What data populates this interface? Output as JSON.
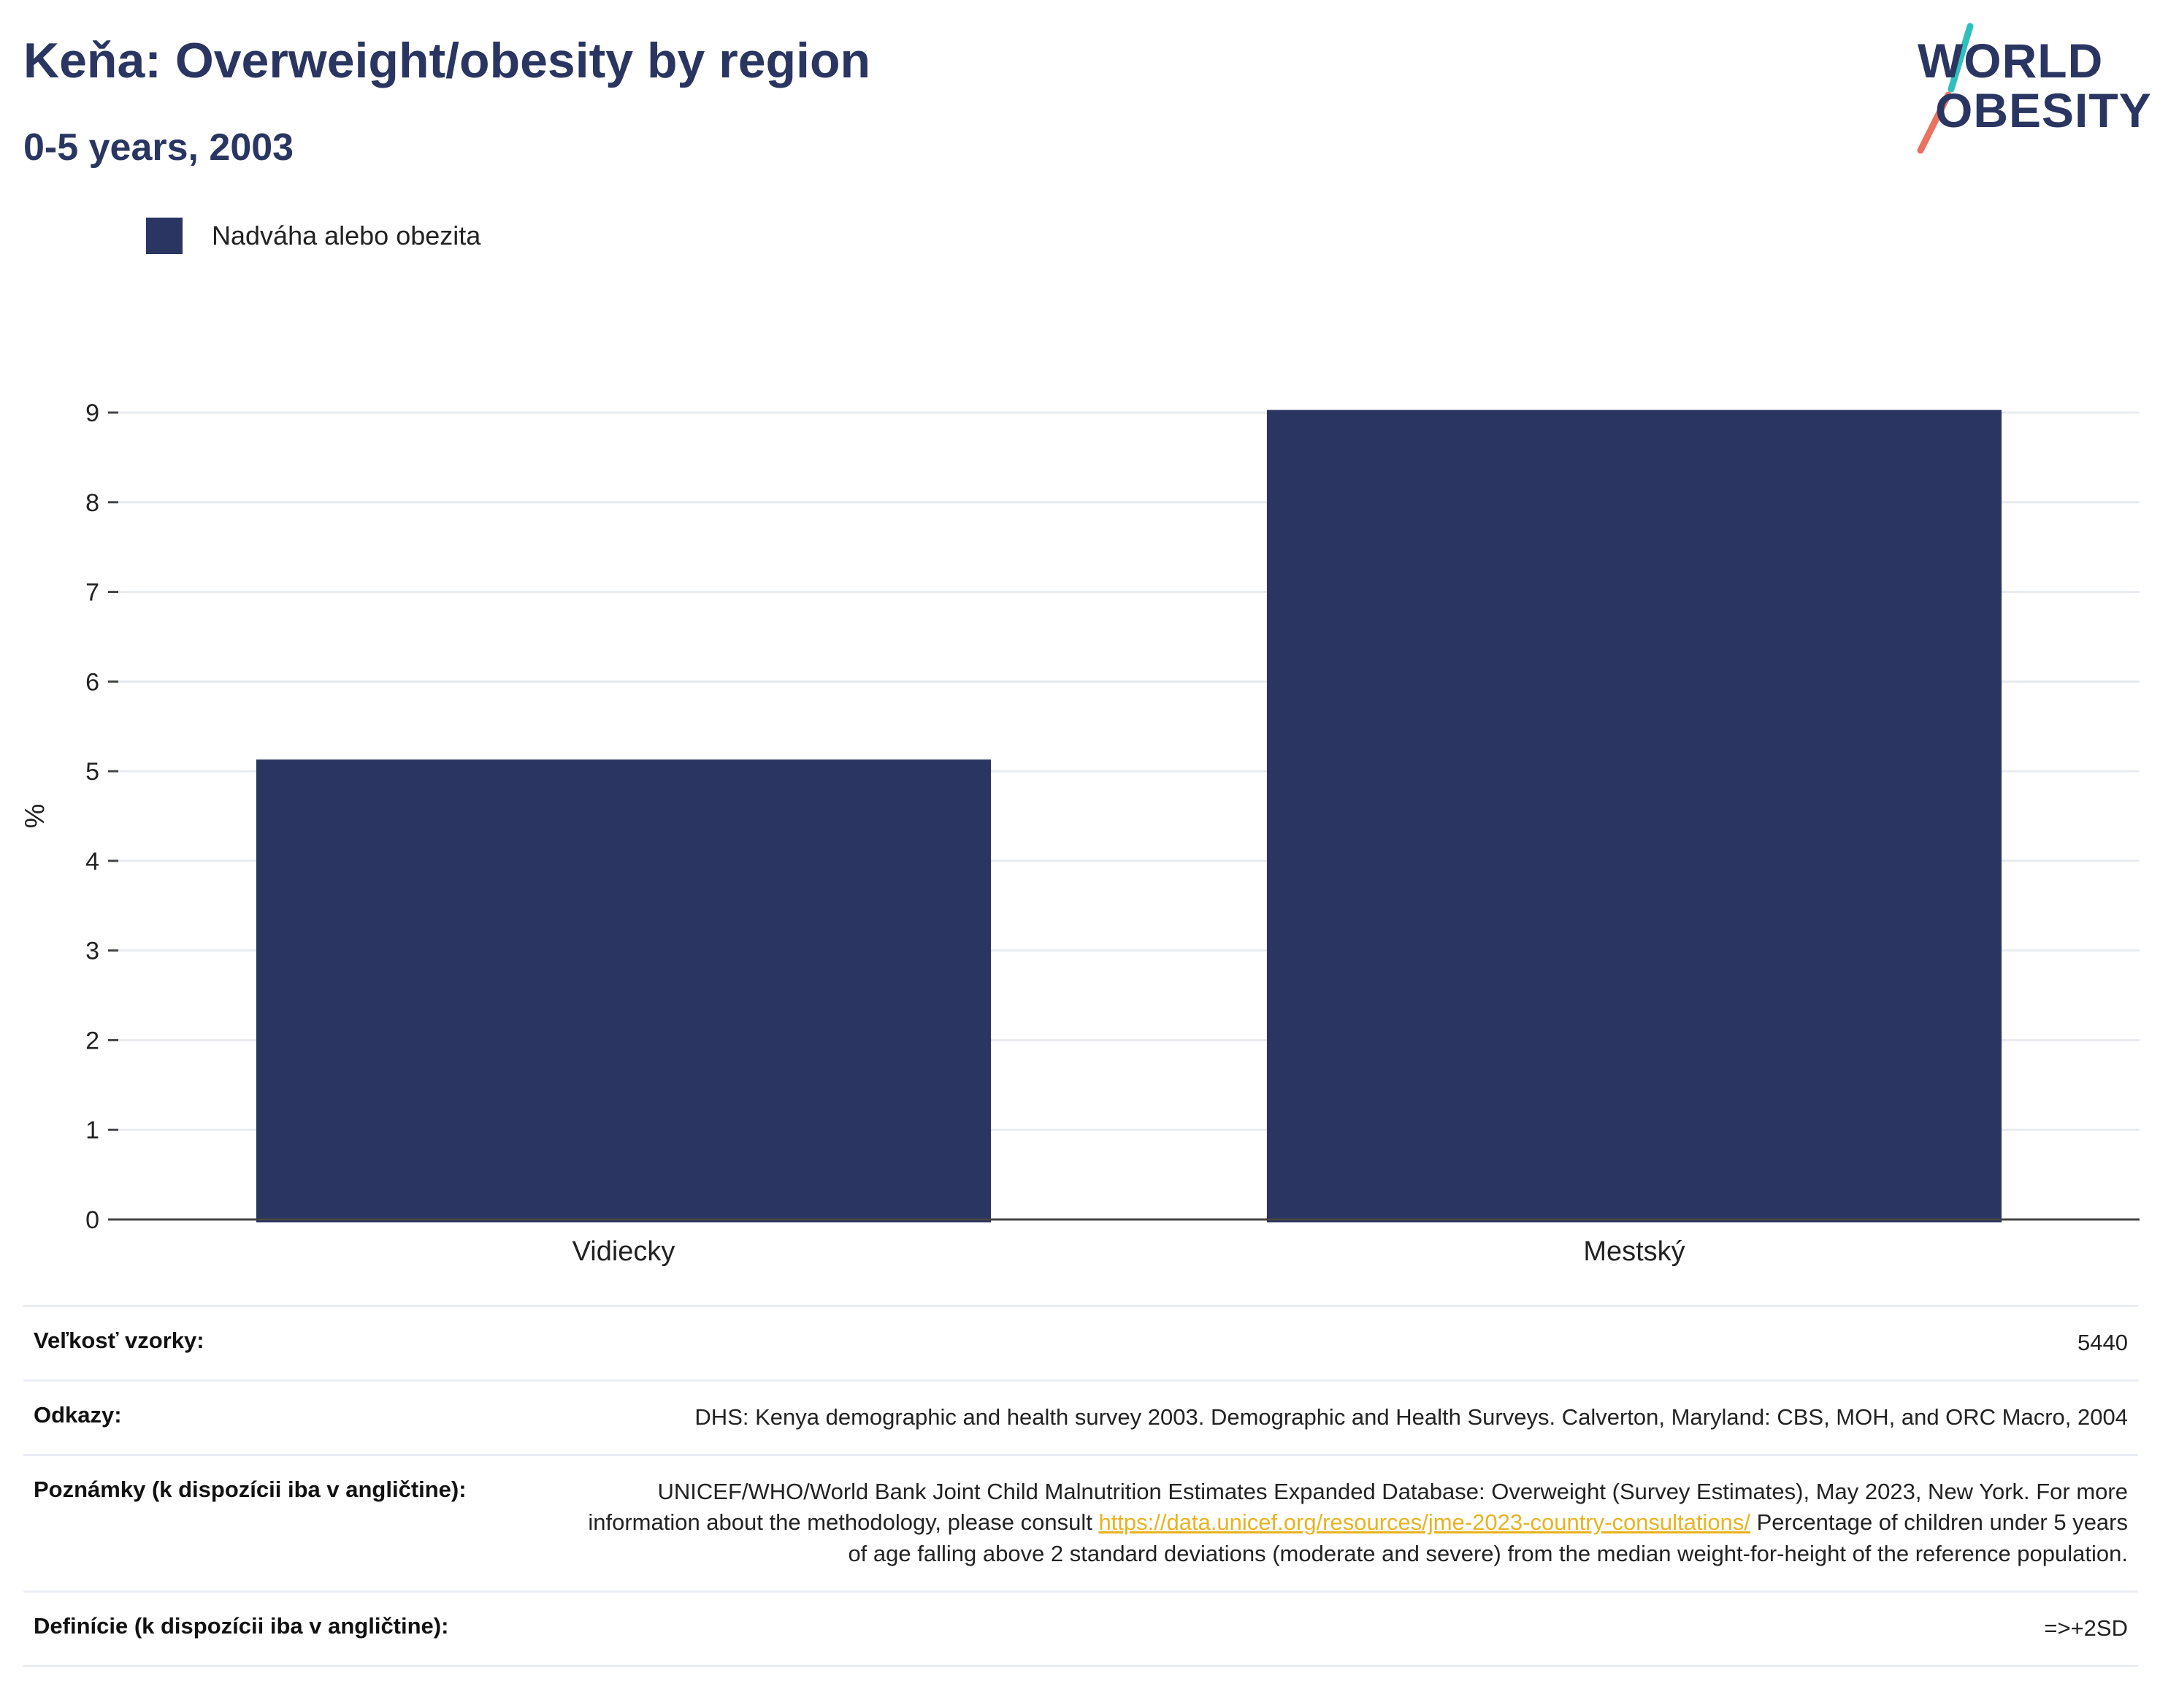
{
  "header": {
    "title": "Keňa: Overweight/obesity by region",
    "subtitle": "0-5 years, 2003"
  },
  "logo": {
    "line1": "WORLD",
    "line2": "OBESITY"
  },
  "colors": {
    "bar": "#2a3661",
    "accent_teal": "#2fbfbf",
    "accent_coral": "#e9735f",
    "link": "#e8b321"
  },
  "chart_data": {
    "type": "bar",
    "categories": [
      "Vidiecky",
      "Mestský"
    ],
    "series": [
      {
        "name": "Nadváha alebo obezita",
        "values": [
          5.13,
          9.03
        ]
      }
    ],
    "ylabel": "%",
    "xlabel": "",
    "ylim": [
      0,
      9
    ],
    "yticks": [
      0,
      1,
      2,
      3,
      4,
      5,
      6,
      7,
      8,
      9
    ],
    "grid": true,
    "legend": "top-left"
  },
  "meta": {
    "sample_size": {
      "label": "Veľkosť vzorky:",
      "value": "5440"
    },
    "references": {
      "label": "Odkazy:",
      "value": "DHS: Kenya demographic and health survey 2003. Demographic and Health Surveys. Calverton, Maryland: CBS, MOH, and ORC Macro, 2004"
    },
    "notes": {
      "label": "Poznámky (k dispozícii iba v angličtine):",
      "text_before": "UNICEF/WHO/World Bank Joint Child Malnutrition Estimates Expanded Database: Overweight (Survey Estimates), May 2023, New York. For more information about the methodology, please consult ",
      "link": "https://data.unicef.org/resources/jme-2023-country-consultations/",
      "text_after": " Percentage of children under 5 years of age falling above 2 standard deviations (moderate and severe) from the median weight-for-height of the reference population."
    },
    "definitions": {
      "label": "Definície (k dispozícii iba v angličtine):",
      "value": "=>+2SD"
    }
  }
}
